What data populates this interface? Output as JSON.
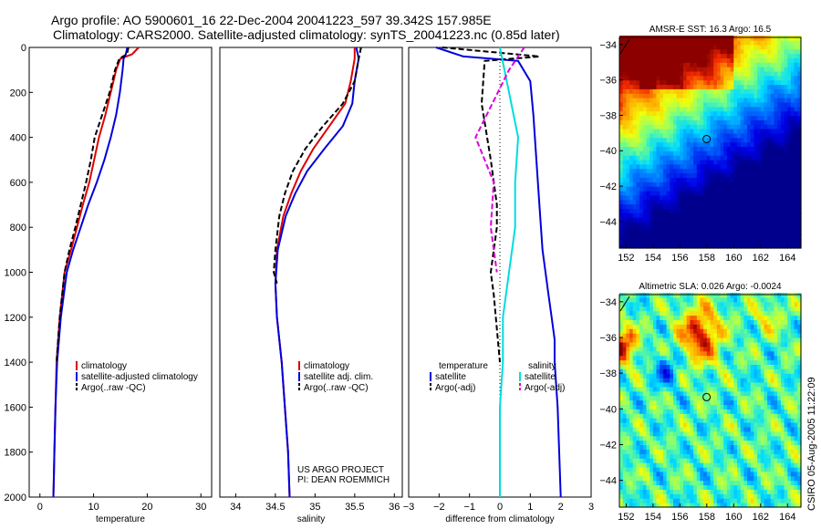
{
  "title": {
    "line1": "Argo profile: AO 5900601_16 22-Dec-2004 20041223_597 39.342S 157.985E",
    "line2": "Climatology: CARS2000. Satellite-adjusted climatology: synTS_20041223.nc (0.85d later)"
  },
  "colors": {
    "climatology": "#dd0000",
    "satellite": "#0000dd",
    "argo": "#000000",
    "satellite_salinity": "#00dddd",
    "argo_salinity": "#dd00dd"
  },
  "credit": {
    "line1": "US ARGO PROJECT",
    "line2": "PI: DEAN ROEMMICH"
  },
  "stamp": "CSIRO 05-Aug-2005 11:22:09",
  "chart_data": [
    {
      "id": "temperature",
      "type": "line",
      "xlabel": "temperature",
      "ylabel": "",
      "xlim": [
        -2,
        32
      ],
      "ylim": [
        2000,
        0
      ],
      "xticks": [
        0,
        10,
        20,
        30
      ],
      "yticks": [
        0,
        200,
        400,
        600,
        800,
        1000,
        1200,
        1400,
        1600,
        1800,
        2000
      ],
      "legend": {
        "placement": "bottom-center",
        "entries": [
          "climatology",
          "satellite-adjusted climatology",
          "Argo(..raw -QC)"
        ]
      },
      "series": [
        {
          "name": "climatology",
          "color": "#dd0000",
          "dash": "solid",
          "x": [
            18.4,
            17.2,
            15.0,
            14.2,
            13.2,
            12.2,
            11.0,
            10.1,
            9.2,
            8.0,
            6.9,
            5.8,
            4.6,
            3.7,
            3.1,
            2.9,
            2.7,
            2.6,
            2.5
          ],
          "y": [
            0,
            30,
            50,
            100,
            200,
            300,
            400,
            500,
            600,
            700,
            800,
            900,
            1000,
            1200,
            1400,
            1600,
            1800,
            1900,
            2000
          ]
        },
        {
          "name": "satellite-adjusted climatology",
          "color": "#0000dd",
          "dash": "solid",
          "x": [
            16.3,
            16.0,
            15.6,
            15.4,
            14.9,
            14.2,
            13.2,
            12.0,
            10.6,
            9.0,
            7.6,
            6.2,
            5.0,
            3.9,
            3.2,
            2.9,
            2.7,
            2.6,
            2.5
          ],
          "y": [
            0,
            30,
            50,
            100,
            200,
            300,
            400,
            500,
            600,
            700,
            800,
            900,
            1000,
            1200,
            1400,
            1600,
            1800,
            1900,
            2000
          ]
        },
        {
          "name": "Argo(..raw -QC)",
          "color": "#000000",
          "dash": "dashed",
          "x": [
            16.5,
            16.2,
            14.8,
            14.0,
            13.0,
            11.6,
            10.2,
            9.5,
            8.6,
            7.6,
            6.6,
            5.5,
            4.6,
            3.7,
            3.1
          ],
          "y": [
            0,
            30,
            50,
            100,
            200,
            300,
            400,
            500,
            600,
            700,
            800,
            900,
            1000,
            1200,
            1400
          ]
        }
      ]
    },
    {
      "id": "salinity",
      "type": "line",
      "xlabel": "salinity",
      "ylabel": "",
      "xlim": [
        33.8,
        36.1
      ],
      "ylim": [
        2000,
        0
      ],
      "xticks": [
        34,
        34.5,
        35,
        35.5,
        36
      ],
      "yticks": [],
      "legend": {
        "placement": "bottom-center",
        "entries": [
          "climatology",
          "satellite adj. clim.",
          "Argo(..raw -QC)"
        ]
      },
      "series": [
        {
          "name": "climatology",
          "color": "#dd0000",
          "dash": "solid",
          "x": [
            35.5,
            35.5,
            35.45,
            35.38,
            35.18,
            34.98,
            34.82,
            34.7,
            34.6,
            34.52,
            34.5,
            34.52,
            34.58,
            34.62,
            34.66,
            34.68
          ],
          "y": [
            0,
            50,
            150,
            250,
            350,
            450,
            550,
            650,
            750,
            900,
            1050,
            1200,
            1400,
            1600,
            1800,
            2000
          ]
        },
        {
          "name": "satellite adj. clim.",
          "color": "#0000dd",
          "dash": "solid",
          "x": [
            35.52,
            35.55,
            35.5,
            35.47,
            35.35,
            35.12,
            34.9,
            34.75,
            34.63,
            34.53,
            34.5,
            34.52,
            34.58,
            34.62,
            34.66,
            34.68
          ],
          "y": [
            0,
            50,
            150,
            250,
            350,
            450,
            550,
            650,
            750,
            900,
            1050,
            1200,
            1400,
            1600,
            1800,
            2000
          ]
        },
        {
          "name": "Argo(..raw -QC)",
          "color": "#000000",
          "dash": "dashed",
          "x": [
            35.58,
            35.55,
            35.5,
            35.35,
            35.1,
            34.88,
            34.72,
            34.62,
            34.55,
            34.5,
            34.48,
            34.52
          ],
          "y": [
            0,
            50,
            150,
            250,
            350,
            450,
            550,
            650,
            750,
            900,
            1000,
            1050
          ]
        }
      ]
    },
    {
      "id": "difference",
      "type": "line",
      "xlabel": "difference from climatology",
      "ylabel": "",
      "xlim": [
        -3,
        3
      ],
      "ylim": [
        2000,
        0
      ],
      "xticks": [
        -3,
        -2,
        -1,
        0,
        1,
        2,
        3
      ],
      "yticks": [],
      "legend": {
        "placement": "bottom-center",
        "groups": [
          {
            "title": "temperature",
            "entries": [
              "satellite",
              "Argo(-adj)"
            ]
          },
          {
            "title": "salinity",
            "entries": [
              "satellite",
              "Argo(-adj)"
            ]
          }
        ]
      },
      "series": [
        {
          "name": "temperature satellite",
          "color": "#0000dd",
          "dash": "solid",
          "x": [
            -2.1,
            -1.2,
            0.6,
            1.0,
            1.1,
            1.2,
            1.3,
            1.4,
            1.5,
            1.6,
            1.7,
            1.8,
            1.8,
            1.9,
            2.0
          ],
          "y": [
            0,
            40,
            60,
            150,
            300,
            500,
            700,
            900,
            1000,
            1100,
            1200,
            1300,
            1400,
            1600,
            2000
          ]
        },
        {
          "name": "temperature Argo(-adj)",
          "color": "#000000",
          "dash": "dashed",
          "x": [
            -1.9,
            1.3,
            -0.5,
            -0.6,
            -0.3,
            -0.1,
            -0.1,
            -0.2,
            -0.3,
            -0.2,
            0.0
          ],
          "y": [
            0,
            40,
            60,
            250,
            500,
            700,
            800,
            900,
            1000,
            1100,
            1400
          ]
        },
        {
          "name": "salinity satellite",
          "color": "#00dddd",
          "dash": "solid",
          "x": [
            0.0,
            0.3,
            0.6,
            0.5,
            0.5,
            0.3,
            0.1,
            0.1,
            0.0,
            0.0,
            0.0
          ],
          "y": [
            0,
            200,
            400,
            600,
            800,
            1000,
            1200,
            1400,
            1600,
            1800,
            2000
          ]
        },
        {
          "name": "salinity Argo(-adj)",
          "color": "#dd00dd",
          "dash": "dashed",
          "x": [
            0.8,
            0.3,
            -0.8,
            -0.2,
            -0.3,
            -0.2,
            -0.1
          ],
          "y": [
            0,
            100,
            400,
            600,
            800,
            900,
            1000
          ]
        }
      ]
    },
    {
      "id": "sst-map",
      "type": "heatmap",
      "title": "AMSR-E SST: 16.3 Argo: 16.5",
      "xlim": [
        151.5,
        165
      ],
      "ylim": [
        -45.5,
        -33.6
      ],
      "xticks": [
        152,
        154,
        156,
        158,
        160,
        162,
        164
      ],
      "yticks": [
        -34,
        -36,
        -38,
        -40,
        -42,
        -44
      ],
      "marker": {
        "lon": 157.985,
        "lat": -39.342
      }
    },
    {
      "id": "sla-map",
      "type": "heatmap",
      "title": "Altimetric SLA: 0.026 Argo: -0.0024",
      "xlim": [
        151.5,
        165
      ],
      "ylim": [
        -45.5,
        -33.6
      ],
      "xticks": [
        152,
        154,
        156,
        158,
        160,
        162,
        164
      ],
      "yticks": [
        -34,
        -36,
        -38,
        -40,
        -42,
        -44
      ],
      "marker": {
        "lon": 157.985,
        "lat": -39.342
      }
    }
  ]
}
